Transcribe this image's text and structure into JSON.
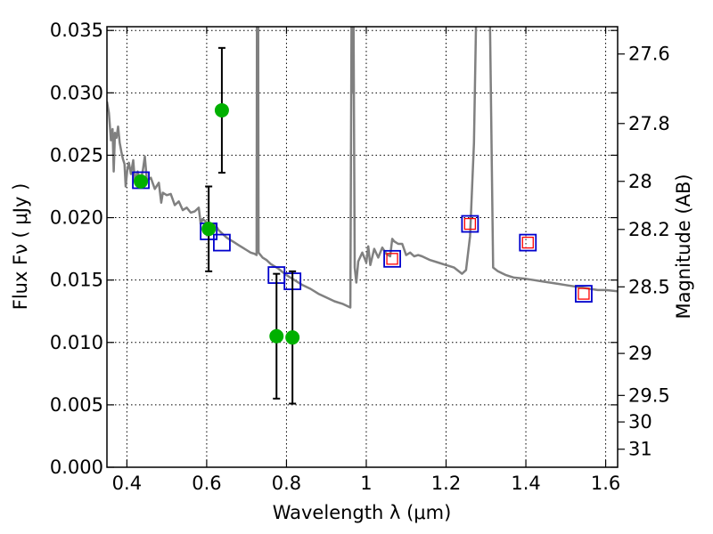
{
  "chart_data": {
    "type": "scatter",
    "title": "",
    "xlabel": "Wavelength  λ (μm)",
    "ylabel": "Flux  Fν  ( μJy )",
    "y2label": "Magnitude (AB)",
    "xlim": [
      0.35,
      1.63
    ],
    "ylim": [
      0,
      0.0353
    ],
    "grid": true,
    "x_ticks": [
      {
        "value": 0.4,
        "label": "0.4"
      },
      {
        "value": 0.6,
        "label": "0.6"
      },
      {
        "value": 0.8,
        "label": "0.8"
      },
      {
        "value": 1.0,
        "label": "1"
      },
      {
        "value": 1.2,
        "label": "1.2"
      },
      {
        "value": 1.4,
        "label": "1.4"
      },
      {
        "value": 1.6,
        "label": "1.6"
      }
    ],
    "y_ticks": [
      {
        "value": 0.0,
        "label": "0.000"
      },
      {
        "value": 0.005,
        "label": "0.005"
      },
      {
        "value": 0.01,
        "label": "0.010"
      },
      {
        "value": 0.015,
        "label": "0.015"
      },
      {
        "value": 0.02,
        "label": "0.020"
      },
      {
        "value": 0.025,
        "label": "0.025"
      },
      {
        "value": 0.03,
        "label": "0.030"
      },
      {
        "value": 0.035,
        "label": "0.035"
      }
    ],
    "y2_ticks": [
      {
        "value": 27.6,
        "label": "27.6"
      },
      {
        "value": 27.8,
        "label": "27.8"
      },
      {
        "value": 28.0,
        "label": "28"
      },
      {
        "value": 28.2,
        "label": "28.2"
      },
      {
        "value": 28.5,
        "label": "28.5"
      },
      {
        "value": 29.0,
        "label": "29"
      },
      {
        "value": 29.5,
        "label": "29.5"
      },
      {
        "value": 30.0,
        "label": "30"
      },
      {
        "value": 31.0,
        "label": "31"
      }
    ],
    "colors": {
      "model": "#808080",
      "observed": "#00b000",
      "model_band": "#0000cc",
      "predicted": "#ff0000",
      "errorbar": "#000000",
      "grid": "#000000"
    },
    "series": [
      {
        "kind": "line",
        "points": [
          [
            0.35,
            0.0293
          ],
          [
            0.355,
            0.0284
          ],
          [
            0.36,
            0.0262
          ],
          [
            0.364,
            0.0271
          ],
          [
            0.367,
            0.0237
          ],
          [
            0.37,
            0.0268
          ],
          [
            0.374,
            0.0264
          ],
          [
            0.378,
            0.0273
          ],
          [
            0.382,
            0.026
          ],
          [
            0.386,
            0.0253
          ],
          [
            0.39,
            0.0247
          ],
          [
            0.394,
            0.0243
          ],
          [
            0.397,
            0.0225
          ],
          [
            0.401,
            0.0238
          ],
          [
            0.405,
            0.0244
          ],
          [
            0.41,
            0.0235
          ],
          [
            0.416,
            0.0246
          ],
          [
            0.42,
            0.0229
          ],
          [
            0.427,
            0.0237
          ],
          [
            0.433,
            0.0227
          ],
          [
            0.44,
            0.0238
          ],
          [
            0.445,
            0.0249
          ],
          [
            0.45,
            0.023
          ],
          [
            0.46,
            0.0232
          ],
          [
            0.47,
            0.0223
          ],
          [
            0.48,
            0.0228
          ],
          [
            0.486,
            0.0212
          ],
          [
            0.49,
            0.022
          ],
          [
            0.5,
            0.0218
          ],
          [
            0.51,
            0.0219
          ],
          [
            0.52,
            0.021
          ],
          [
            0.53,
            0.0213
          ],
          [
            0.54,
            0.0206
          ],
          [
            0.55,
            0.0208
          ],
          [
            0.56,
            0.0204
          ],
          [
            0.57,
            0.0205
          ],
          [
            0.58,
            0.0208
          ],
          [
            0.585,
            0.0195
          ],
          [
            0.59,
            0.0199
          ],
          [
            0.6,
            0.0196
          ],
          [
            0.61,
            0.0193
          ],
          [
            0.62,
            0.0195
          ],
          [
            0.63,
            0.019
          ],
          [
            0.64,
            0.0187
          ],
          [
            0.65,
            0.0184
          ],
          [
            0.66,
            0.0182
          ],
          [
            0.67,
            0.018
          ],
          [
            0.68,
            0.0178
          ],
          [
            0.69,
            0.0176
          ],
          [
            0.7,
            0.0174
          ],
          [
            0.71,
            0.0172
          ],
          [
            0.72,
            0.0171
          ],
          [
            0.725,
            0.017
          ],
          [
            0.726,
            0.0355
          ],
          [
            0.729,
            0.0355
          ],
          [
            0.73,
            0.0172
          ],
          [
            0.74,
            0.0168
          ],
          [
            0.75,
            0.0166
          ],
          [
            0.76,
            0.0163
          ],
          [
            0.78,
            0.0159
          ],
          [
            0.8,
            0.0154
          ],
          [
            0.82,
            0.015
          ],
          [
            0.84,
            0.0146
          ],
          [
            0.86,
            0.0143
          ],
          [
            0.88,
            0.0139
          ],
          [
            0.9,
            0.0136
          ],
          [
            0.92,
            0.0133
          ],
          [
            0.94,
            0.0131
          ],
          [
            0.96,
            0.0128
          ],
          [
            0.963,
            0.0355
          ],
          [
            0.966,
            0.03
          ],
          [
            0.968,
            0.0355
          ],
          [
            0.971,
            0.016
          ],
          [
            0.975,
            0.0148
          ],
          [
            0.98,
            0.0165
          ],
          [
            0.99,
            0.0172
          ],
          [
            1.0,
            0.0164
          ],
          [
            1.005,
            0.0177
          ],
          [
            1.01,
            0.0162
          ],
          [
            1.02,
            0.0175
          ],
          [
            1.03,
            0.0168
          ],
          [
            1.04,
            0.0176
          ],
          [
            1.05,
            0.0171
          ],
          [
            1.06,
            0.0169
          ],
          [
            1.065,
            0.0183
          ],
          [
            1.07,
            0.0181
          ],
          [
            1.08,
            0.0179
          ],
          [
            1.09,
            0.0179
          ],
          [
            1.1,
            0.017
          ],
          [
            1.11,
            0.0172
          ],
          [
            1.12,
            0.0169
          ],
          [
            1.13,
            0.017
          ],
          [
            1.14,
            0.0169
          ],
          [
            1.16,
            0.0166
          ],
          [
            1.18,
            0.0164
          ],
          [
            1.2,
            0.0162
          ],
          [
            1.22,
            0.016
          ],
          [
            1.24,
            0.0155
          ],
          [
            1.25,
            0.0158
          ],
          [
            1.26,
            0.0185
          ],
          [
            1.27,
            0.026
          ],
          [
            1.275,
            0.0355
          ],
          [
            1.31,
            0.0355
          ],
          [
            1.318,
            0.016
          ],
          [
            1.33,
            0.0157
          ],
          [
            1.35,
            0.0154
          ],
          [
            1.37,
            0.0152
          ],
          [
            1.4,
            0.0151
          ],
          [
            1.42,
            0.015
          ],
          [
            1.44,
            0.0149
          ],
          [
            1.46,
            0.0148
          ],
          [
            1.48,
            0.0147
          ],
          [
            1.5,
            0.0146
          ],
          [
            1.52,
            0.0145
          ],
          [
            1.54,
            0.0144
          ],
          [
            1.56,
            0.0143
          ],
          [
            1.58,
            0.0142
          ],
          [
            1.6,
            0.0142
          ],
          [
            1.63,
            0.0141
          ]
        ]
      },
      {
        "kind": "square",
        "color_key": "model_band",
        "x": [
          0.435,
          0.605,
          0.638,
          0.775,
          0.815,
          1.065,
          1.26,
          1.405,
          1.545
        ],
        "y": [
          0.023,
          0.0189,
          0.018,
          0.0154,
          0.0149,
          0.0167,
          0.0195,
          0.018,
          0.0139
        ]
      },
      {
        "kind": "square",
        "color_key": "predicted",
        "x": [
          1.065,
          1.26,
          1.405,
          1.545
        ],
        "y": [
          0.0167,
          0.0195,
          0.018,
          0.0139
        ]
      },
      {
        "kind": "point",
        "color_key": "observed",
        "x": [
          0.435,
          0.605,
          0.638,
          0.775,
          0.815
        ],
        "y": [
          0.0229,
          0.0191,
          0.0286,
          0.0105,
          0.0104
        ],
        "yerr": [
          0,
          0.0034,
          0.005,
          0.005,
          0.0053
        ]
      }
    ]
  }
}
